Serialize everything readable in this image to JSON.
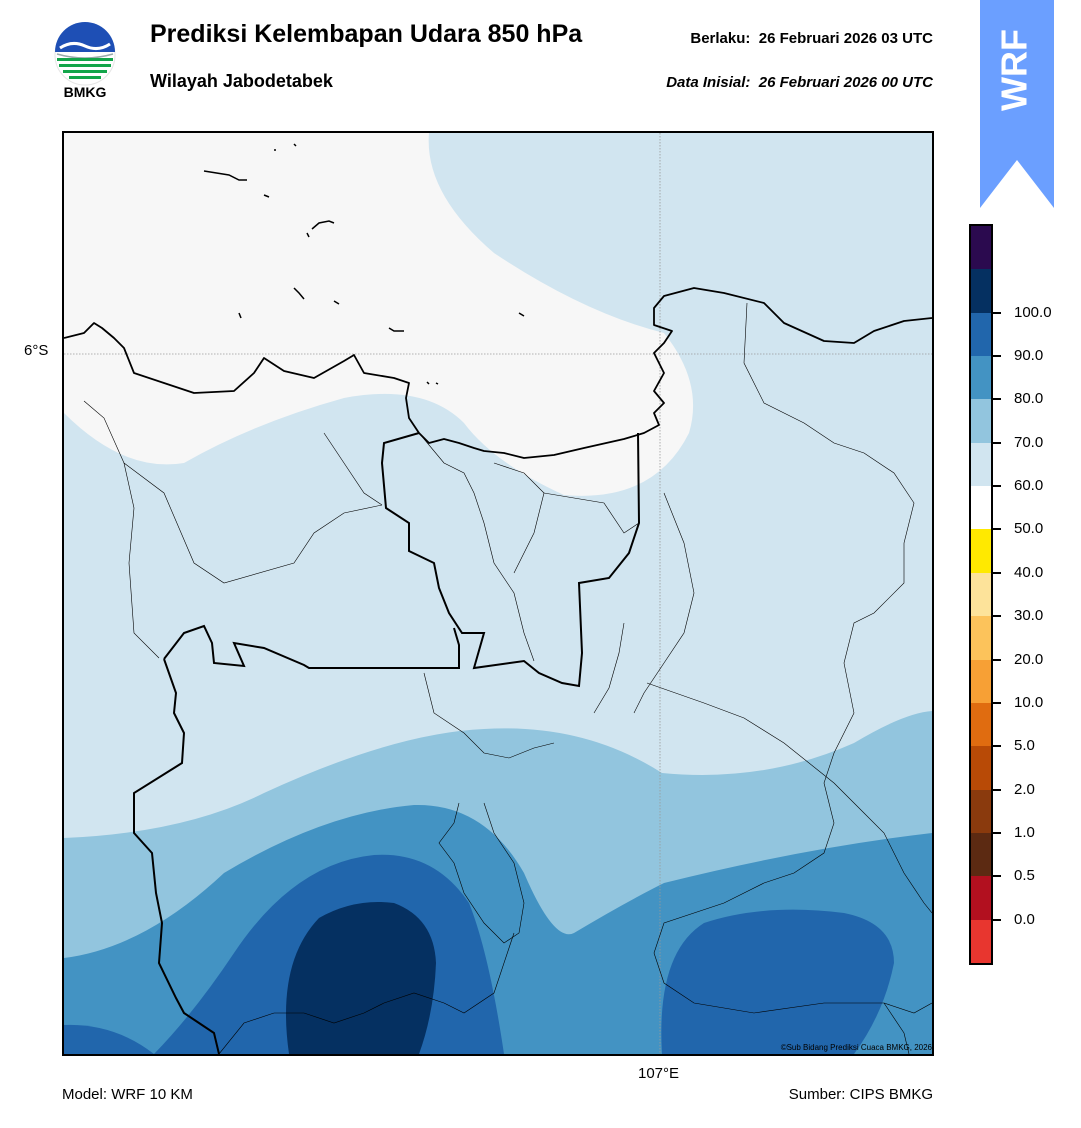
{
  "header": {
    "title": "Prediksi Kelembapan Udara 850 hPa",
    "subtitle": "Wilayah Jabodetabek",
    "valid_label": "Berlaku:",
    "valid_time": "26 Februari 2026 03 UTC",
    "init_label": "Data Inisial:",
    "init_time": "26 Februari 2026 00 UTC"
  },
  "logo": {
    "icon": "bmkg-logo-icon",
    "label": "BMKG"
  },
  "badge": {
    "label": "WRF",
    "color": "#6b9fff"
  },
  "map": {
    "lat_label": "6°S",
    "lon_label": "107°E",
    "credit": "©Sub Bidang Prediksi Cuaca BMKG, 2026",
    "colors": {
      "dry_white": "#f7f7f7",
      "band_50_60": "#d1e5f0",
      "band_60_70": "#92c5de",
      "band_70_80": "#4393c3",
      "band_80_90": "#2166ac",
      "band_90_100": "#053061"
    }
  },
  "colorbar": {
    "colors": [
      "#e8362f",
      "#b2101f",
      "#5c2a12",
      "#8a3a0d",
      "#b84a06",
      "#e06c10",
      "#f7a035",
      "#fcc35b",
      "#fde39a",
      "#ffe900",
      "#ffffff",
      "#d1e5f0",
      "#92c5de",
      "#4393c3",
      "#2166ac",
      "#053061",
      "#2b0a4f"
    ],
    "labels": [
      "0.0",
      "0.5",
      "1.0",
      "2.0",
      "5.0",
      "10.0",
      "20.0",
      "30.0",
      "40.0",
      "50.0",
      "60.0",
      "70.0",
      "80.0",
      "90.0",
      "100.0"
    ]
  },
  "footer": {
    "model": "Model: WRF 10 KM",
    "source": "Sumber: CIPS BMKG"
  }
}
